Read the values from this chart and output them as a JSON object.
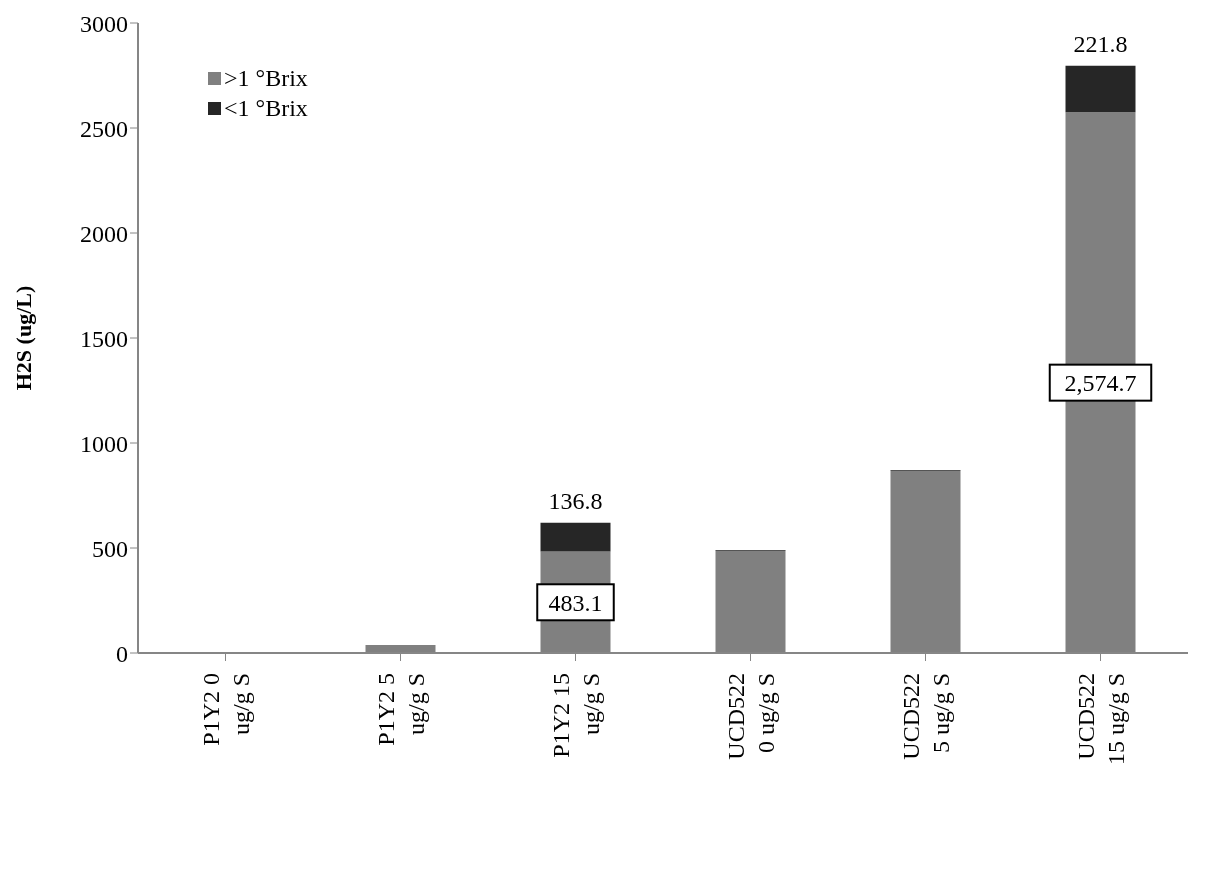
{
  "chart_data": {
    "type": "bar",
    "stacked": true,
    "ylabel": "H2S (ug/L)",
    "categories": [
      "P1Y2 0\nug/g S",
      "P1Y2 5\nug/g S",
      "P1Y2 15\nug/g S",
      "UCD522\n0 ug/g S",
      "UCD522\n5 ug/g S",
      "UCD522\n15 ug/g S"
    ],
    "series": [
      {
        "name": ">1 °Brix",
        "color": "#808080",
        "values": [
          0,
          38,
          483.1,
          487,
          868,
          2574.7
        ],
        "value_labels": [
          null,
          null,
          "483.1",
          null,
          null,
          "2,574.7"
        ]
      },
      {
        "name": "<1 °Brix",
        "color": "#262626",
        "values": [
          0,
          0,
          136.8,
          3,
          3,
          221.8
        ],
        "value_labels": [
          null,
          null,
          "136.8",
          null,
          null,
          "221.8"
        ]
      }
    ],
    "ylim": [
      0,
      3000
    ],
    "yticks": [
      0,
      500,
      1000,
      1500,
      2000,
      2500,
      3000
    ],
    "grid": false,
    "legend": "top left"
  }
}
